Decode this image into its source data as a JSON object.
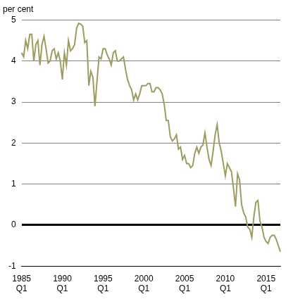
{
  "chart_data": {
    "type": "line",
    "ylabel": "per cent",
    "color": "#9c9c5c",
    "grid": true,
    "ylim": [
      -1,
      5
    ],
    "yticks": [
      -1,
      0,
      1,
      2,
      3,
      4,
      5
    ],
    "categories": [
      "1985 Q1",
      null,
      null,
      null,
      null,
      null,
      null,
      null,
      null,
      null,
      null,
      null,
      null,
      null,
      null,
      null,
      null,
      null,
      null,
      null,
      "1990 Q1",
      null,
      null,
      null,
      null,
      null,
      null,
      null,
      null,
      null,
      null,
      null,
      null,
      null,
      null,
      null,
      null,
      null,
      null,
      null,
      "1995 Q1",
      null,
      null,
      null,
      null,
      null,
      null,
      null,
      null,
      null,
      null,
      null,
      null,
      null,
      null,
      null,
      null,
      null,
      null,
      null,
      "2000 Q1",
      null,
      null,
      null,
      null,
      null,
      null,
      null,
      null,
      null,
      null,
      null,
      null,
      null,
      null,
      null,
      null,
      null,
      null,
      null,
      "2005 Q1",
      null,
      null,
      null,
      null,
      null,
      null,
      null,
      null,
      null,
      null,
      null,
      null,
      null,
      null,
      null,
      null,
      null,
      null,
      null,
      "2010 Q1",
      null,
      null,
      null,
      null,
      null,
      null,
      null,
      null,
      null,
      null,
      null,
      null,
      null,
      null,
      null,
      null,
      null,
      null,
      null,
      "2015 Q1",
      null,
      null,
      null,
      null,
      null,
      null,
      null
    ],
    "values": [
      4.2,
      4.1,
      4.5,
      4.3,
      4.65,
      4.65,
      4.0,
      4.4,
      4.5,
      3.9,
      4.4,
      4.6,
      4.3,
      3.95,
      4.0,
      4.25,
      4.3,
      4.05,
      4.2,
      4.0,
      3.55,
      4.2,
      3.9,
      4.5,
      4.25,
      4.3,
      4.4,
      4.8,
      4.92,
      4.9,
      4.85,
      4.45,
      4.5,
      3.4,
      3.75,
      3.6,
      2.9,
      3.5,
      4.1,
      4.05,
      4.3,
      4.3,
      4.15,
      4.05,
      3.9,
      4.2,
      4.25,
      4.0,
      4.0,
      4.05,
      4.1,
      3.8,
      3.55,
      3.4,
      3.3,
      3.05,
      3.2,
      3.05,
      3.2,
      3.4,
      3.4,
      3.4,
      3.45,
      3.45,
      3.25,
      3.25,
      3.35,
      3.35,
      3.3,
      3.2,
      2.95,
      2.55,
      2.55,
      2.15,
      2.05,
      2.1,
      2.2,
      1.85,
      1.9,
      1.6,
      1.7,
      1.5,
      1.5,
      1.4,
      1.45,
      1.75,
      1.9,
      1.75,
      1.9,
      1.95,
      2.25,
      1.9,
      1.6,
      1.45,
      1.8,
      2.2,
      2.45,
      2.0,
      1.8,
      1.5,
      1.2,
      1.5,
      1.4,
      1.3,
      0.9,
      0.45,
      1.25,
      1.1,
      0.5,
      0.3,
      0.2,
      -0.05,
      -0.1,
      -0.3,
      0.2,
      0.55,
      0.6,
      0.1,
      -0.05,
      -0.3,
      -0.4,
      -0.45,
      -0.3,
      -0.25,
      -0.25,
      -0.35,
      -0.5,
      -0.65
    ]
  }
}
